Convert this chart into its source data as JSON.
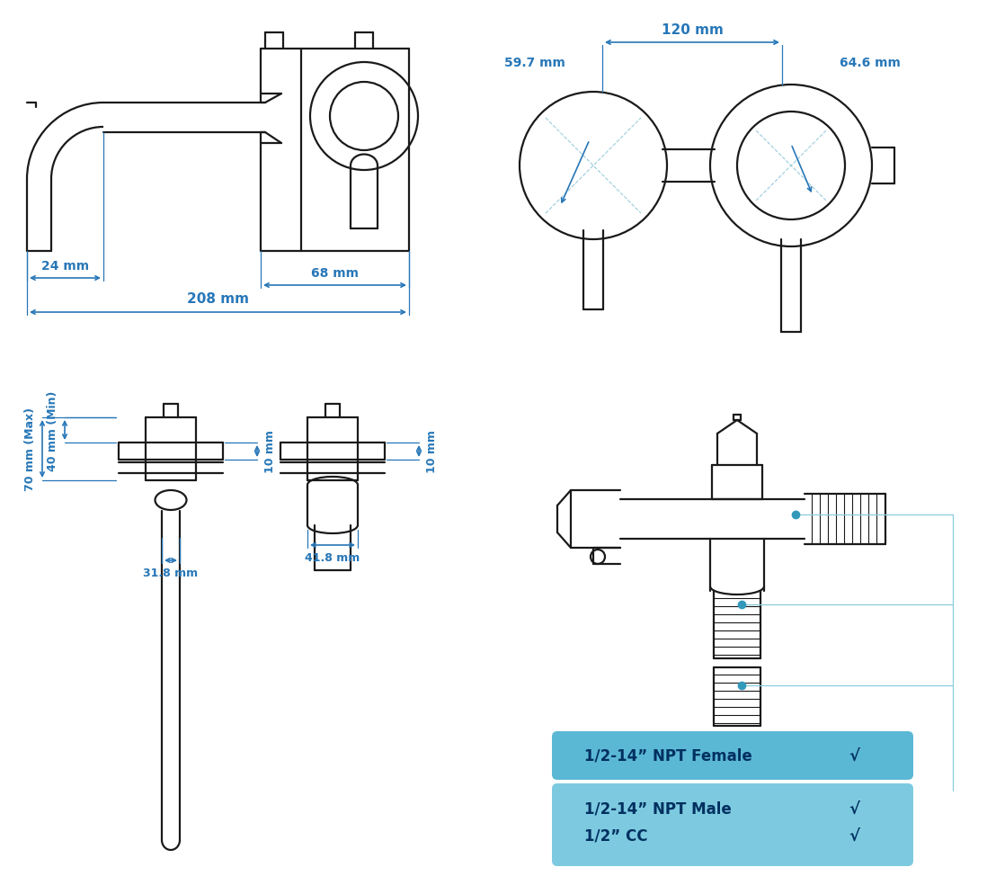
{
  "bg_color": "#ffffff",
  "line_color": "#1a1a1a",
  "dim_color": "#2777B8",
  "dim_top_left": {
    "label_24": "24 mm",
    "label_68": "68 mm",
    "label_208": "208 mm"
  },
  "dim_top_right": {
    "label_597": "59.7 mm",
    "label_120": "120 mm",
    "label_646": "64.6 mm"
  },
  "dim_bottom_left": {
    "label_70": "70 mm (Max)",
    "label_40": "40 mm (Min)",
    "label_10a": "10 mm",
    "label_10b": "10 mm",
    "label_318": "31.8 mm",
    "label_418": "41.8 mm"
  },
  "bottom_right_labels": {
    "npt_female": "1/2-14” NPT Female",
    "npt_male": "1/2-14” NPT Male",
    "cc": "1/2” CC",
    "check": "√"
  },
  "box1_color": "#5BB8D4",
  "box2_color": "#7DCAE0"
}
